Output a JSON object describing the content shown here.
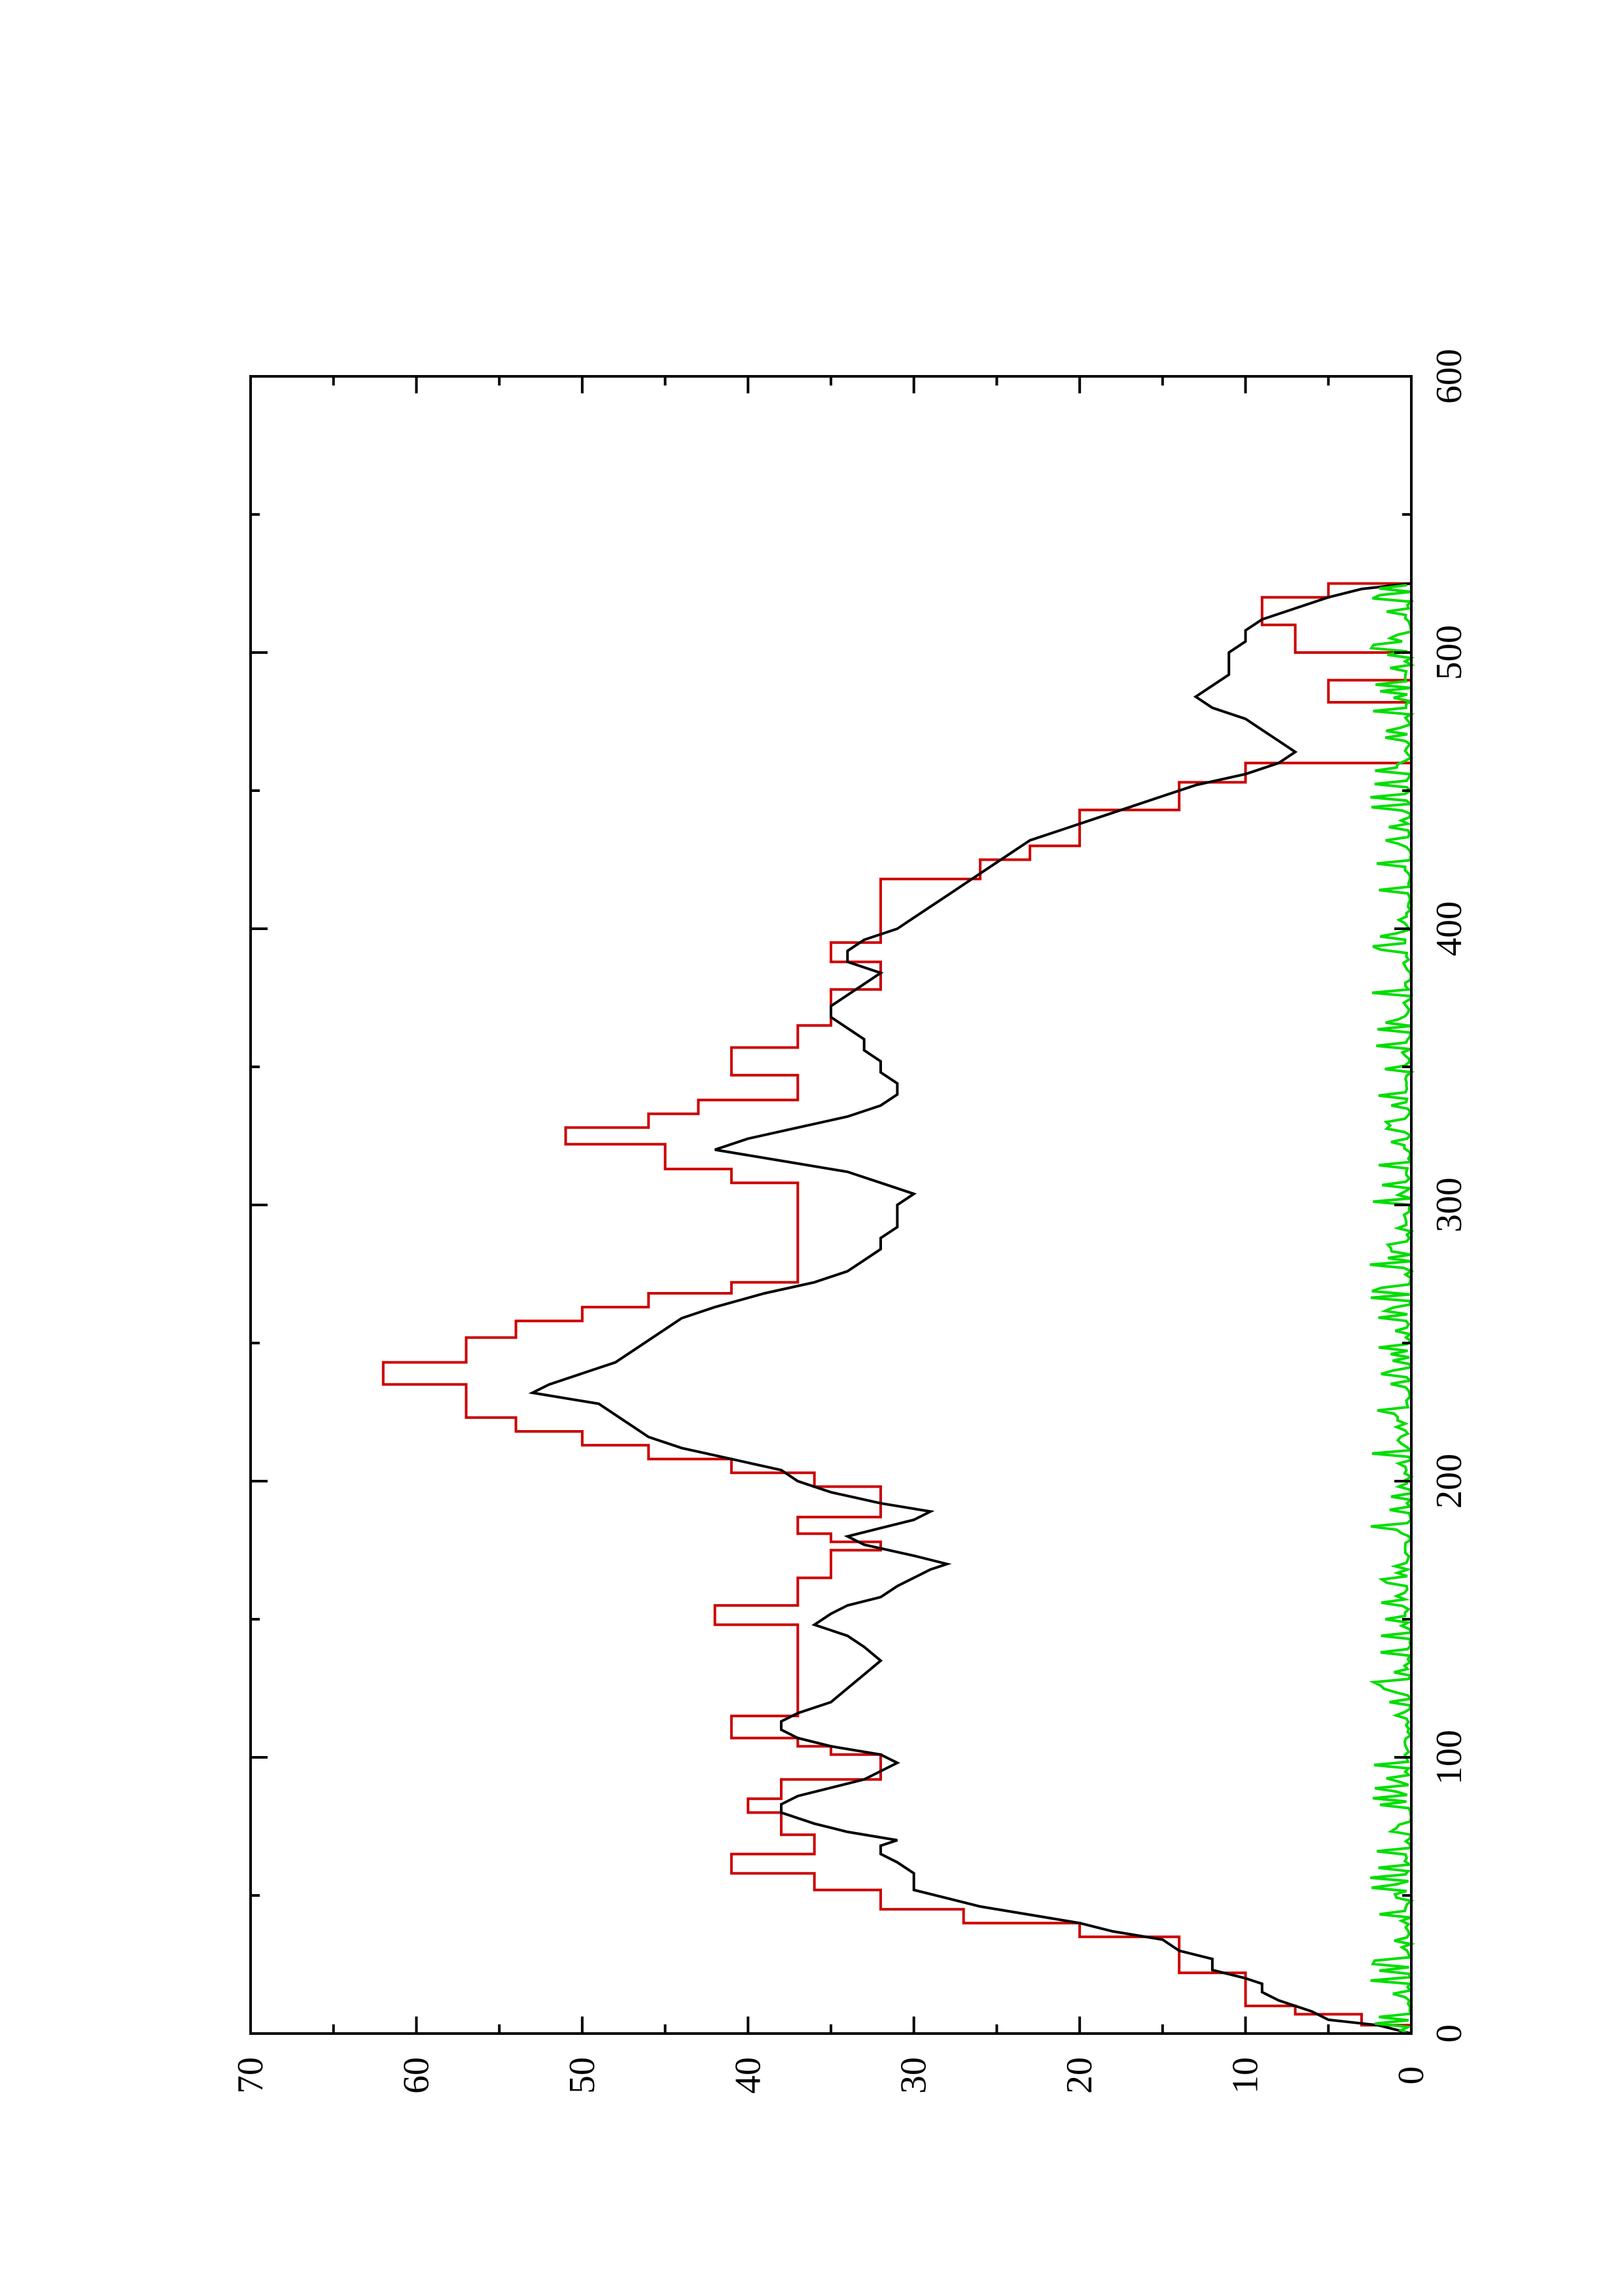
{
  "chart_data": {
    "type": "line",
    "title": "",
    "xlabel": "",
    "ylabel": "",
    "xlim": [
      0,
      600
    ],
    "ylim": [
      0,
      70
    ],
    "x_ticks_major": [
      0,
      100,
      200,
      300,
      400,
      500,
      600
    ],
    "x_ticks_minor": [
      50,
      150,
      250,
      350,
      450,
      550
    ],
    "y_ticks_major": [
      0,
      10,
      20,
      30,
      40,
      50,
      60,
      70
    ],
    "y_ticks_minor": [
      5,
      15,
      25,
      35,
      45,
      55,
      65
    ],
    "grid": false,
    "legend": "none",
    "orientation": "rotated-90-ccw",
    "series": [
      {
        "color": "#cc0000",
        "step": true,
        "points": [
          [
            0,
            0
          ],
          [
            3,
            3
          ],
          [
            7,
            7
          ],
          [
            10,
            10
          ],
          [
            18,
            10
          ],
          [
            22,
            14
          ],
          [
            30,
            14
          ],
          [
            35,
            20
          ],
          [
            40,
            27
          ],
          [
            45,
            32
          ],
          [
            52,
            36
          ],
          [
            58,
            41
          ],
          [
            63,
            41
          ],
          [
            65,
            36
          ],
          [
            70,
            36
          ],
          [
            72,
            38
          ],
          [
            77,
            38
          ],
          [
            80,
            40
          ],
          [
            82,
            40
          ],
          [
            85,
            38
          ],
          [
            88,
            38
          ],
          [
            92,
            32
          ],
          [
            95,
            32
          ],
          [
            98,
            32
          ],
          [
            101,
            35
          ],
          [
            104,
            37
          ],
          [
            107,
            41
          ],
          [
            110,
            41
          ],
          [
            115,
            37
          ],
          [
            145,
            37
          ],
          [
            148,
            42
          ],
          [
            150,
            42
          ],
          [
            155,
            37
          ],
          [
            160,
            37
          ],
          [
            165,
            35
          ],
          [
            170,
            35
          ],
          [
            175,
            32
          ],
          [
            178,
            35
          ],
          [
            181,
            37
          ],
          [
            184,
            37
          ],
          [
            187,
            32
          ],
          [
            195,
            32
          ],
          [
            198,
            36
          ],
          [
            203,
            41
          ],
          [
            208,
            46
          ],
          [
            213,
            50
          ],
          [
            218,
            54
          ],
          [
            223,
            57
          ],
          [
            228,
            57
          ],
          [
            235,
            62
          ],
          [
            238,
            62
          ],
          [
            243,
            57
          ],
          [
            248,
            57
          ],
          [
            252,
            54
          ],
          [
            255,
            54
          ],
          [
            258,
            50
          ],
          [
            263,
            46
          ],
          [
            268,
            41
          ],
          [
            272,
            37
          ],
          [
            302,
            37
          ],
          [
            308,
            41
          ],
          [
            313,
            45
          ],
          [
            318,
            45
          ],
          [
            322,
            51
          ],
          [
            325,
            51
          ],
          [
            328,
            46
          ],
          [
            333,
            43
          ],
          [
            338,
            37
          ],
          [
            345,
            37
          ],
          [
            347,
            41
          ],
          [
            352,
            41
          ],
          [
            357,
            37
          ],
          [
            362,
            37
          ],
          [
            365,
            35
          ],
          [
            375,
            35
          ],
          [
            378,
            32
          ],
          [
            385,
            32
          ],
          [
            388,
            35
          ],
          [
            390,
            35
          ],
          [
            395,
            32
          ],
          [
            415,
            32
          ],
          [
            418,
            26
          ],
          [
            421,
            26
          ],
          [
            425,
            23
          ],
          [
            430,
            20
          ],
          [
            440,
            20
          ],
          [
            443,
            14
          ],
          [
            450,
            14
          ],
          [
            453,
            10
          ],
          [
            460,
            0
          ],
          [
            478,
            0
          ],
          [
            482,
            5
          ],
          [
            486,
            5
          ],
          [
            490,
            0
          ],
          [
            496,
            0
          ],
          [
            500,
            7
          ],
          [
            508,
            7
          ],
          [
            510,
            9
          ],
          [
            516,
            9
          ],
          [
            520,
            5
          ],
          [
            525,
            0
          ]
        ]
      },
      {
        "color": "#000000",
        "step": false,
        "points": [
          [
            0,
            0
          ],
          [
            3,
            2
          ],
          [
            5,
            5
          ],
          [
            8,
            6
          ],
          [
            12,
            8
          ],
          [
            15,
            9
          ],
          [
            18,
            9
          ],
          [
            20,
            10
          ],
          [
            23,
            12
          ],
          [
            27,
            12
          ],
          [
            30,
            14
          ],
          [
            34,
            15
          ],
          [
            37,
            18
          ],
          [
            40,
            20
          ],
          [
            43,
            23
          ],
          [
            46,
            26
          ],
          [
            49,
            28
          ],
          [
            52,
            30
          ],
          [
            55,
            30
          ],
          [
            58,
            30
          ],
          [
            62,
            31
          ],
          [
            65,
            32
          ],
          [
            68,
            32
          ],
          [
            70,
            31
          ],
          [
            73,
            34
          ],
          [
            76,
            36
          ],
          [
            80,
            38
          ],
          [
            83,
            38
          ],
          [
            86,
            37
          ],
          [
            89,
            35
          ],
          [
            92,
            33
          ],
          [
            95,
            32
          ],
          [
            98,
            31
          ],
          [
            101,
            32
          ],
          [
            104,
            35
          ],
          [
            107,
            37
          ],
          [
            110,
            38
          ],
          [
            113,
            38
          ],
          [
            116,
            37
          ],
          [
            120,
            35
          ],
          [
            125,
            34
          ],
          [
            130,
            33
          ],
          [
            135,
            32
          ],
          [
            140,
            33
          ],
          [
            144,
            34
          ],
          [
            148,
            36
          ],
          [
            152,
            35
          ],
          [
            155,
            34
          ],
          [
            158,
            32
          ],
          [
            162,
            31
          ],
          [
            165,
            30
          ],
          [
            168,
            29
          ],
          [
            170,
            28
          ],
          [
            173,
            30
          ],
          [
            177,
            33
          ],
          [
            180,
            34
          ],
          [
            183,
            32
          ],
          [
            186,
            30
          ],
          [
            189,
            29
          ],
          [
            192,
            32
          ],
          [
            196,
            35
          ],
          [
            200,
            37
          ],
          [
            204,
            38
          ],
          [
            208,
            41
          ],
          [
            212,
            44
          ],
          [
            216,
            46
          ],
          [
            220,
            47
          ],
          [
            224,
            48
          ],
          [
            228,
            49
          ],
          [
            232,
            53
          ],
          [
            235,
            52
          ],
          [
            239,
            50
          ],
          [
            243,
            48
          ],
          [
            247,
            47
          ],
          [
            251,
            46
          ],
          [
            255,
            45
          ],
          [
            259,
            44
          ],
          [
            263,
            42
          ],
          [
            268,
            39
          ],
          [
            272,
            36
          ],
          [
            276,
            34
          ],
          [
            280,
            33
          ],
          [
            284,
            32
          ],
          [
            288,
            32
          ],
          [
            292,
            31
          ],
          [
            296,
            31
          ],
          [
            300,
            31
          ],
          [
            304,
            30
          ],
          [
            308,
            32
          ],
          [
            312,
            34
          ],
          [
            316,
            38
          ],
          [
            320,
            42
          ],
          [
            324,
            40
          ],
          [
            328,
            37
          ],
          [
            332,
            34
          ],
          [
            336,
            32
          ],
          [
            340,
            31
          ],
          [
            344,
            31
          ],
          [
            348,
            32
          ],
          [
            352,
            32
          ],
          [
            356,
            33
          ],
          [
            360,
            33
          ],
          [
            364,
            34
          ],
          [
            368,
            35
          ],
          [
            372,
            35
          ],
          [
            376,
            34
          ],
          [
            380,
            33
          ],
          [
            384,
            32
          ],
          [
            388,
            34
          ],
          [
            392,
            34
          ],
          [
            396,
            33
          ],
          [
            400,
            31
          ],
          [
            404,
            30
          ],
          [
            408,
            29
          ],
          [
            412,
            28
          ],
          [
            416,
            27
          ],
          [
            420,
            26
          ],
          [
            424,
            25
          ],
          [
            428,
            24
          ],
          [
            432,
            23
          ],
          [
            436,
            21
          ],
          [
            440,
            19
          ],
          [
            444,
            17
          ],
          [
            448,
            15
          ],
          [
            452,
            13
          ],
          [
            456,
            10
          ],
          [
            460,
            8
          ],
          [
            464,
            7
          ],
          [
            468,
            8
          ],
          [
            472,
            9
          ],
          [
            476,
            10
          ],
          [
            480,
            12
          ],
          [
            484,
            13
          ],
          [
            488,
            12
          ],
          [
            492,
            11
          ],
          [
            496,
            11
          ],
          [
            500,
            11
          ],
          [
            504,
            10
          ],
          [
            508,
            10
          ],
          [
            512,
            9
          ],
          [
            516,
            7
          ],
          [
            520,
            5
          ],
          [
            523,
            3
          ],
          [
            525,
            0
          ]
        ]
      },
      {
        "color": "#00dd00",
        "step": false,
        "noise_band": {
          "x_start": 0,
          "x_end": 525,
          "baseline": 0,
          "max_amplitude": 2.5
        }
      }
    ]
  }
}
